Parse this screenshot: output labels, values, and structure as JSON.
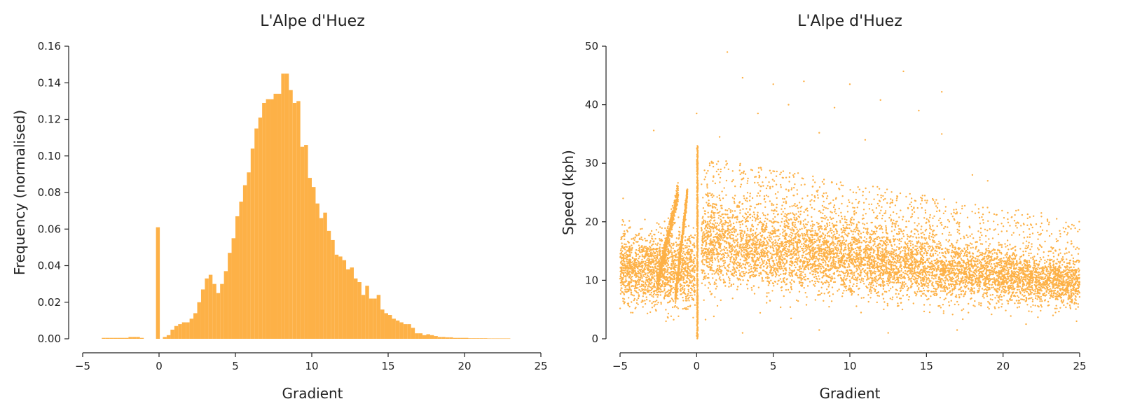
{
  "chart_data": [
    {
      "type": "bar",
      "title": "L'Alpe d'Huez",
      "xlabel": "Gradient",
      "ylabel": "Frequency (normalised)",
      "xlim": [
        -5,
        25
      ],
      "ylim": [
        0,
        0.16
      ],
      "xticks": [
        -5,
        0,
        5,
        10,
        15,
        20,
        25
      ],
      "yticks": [
        0.0,
        0.02,
        0.04,
        0.06,
        0.08,
        0.1,
        0.12,
        0.14,
        0.16
      ],
      "ytick_labels": [
        "0.00",
        "0.02",
        "0.04",
        "0.06",
        "0.08",
        "0.10",
        "0.12",
        "0.14",
        "0.16"
      ],
      "xtick_labels": [
        "−5",
        "0",
        "5",
        "10",
        "15",
        "20",
        "25"
      ],
      "color": "#fdb147",
      "bin_width": 0.25,
      "bins": [
        {
          "x": -3.75,
          "y": 0.0005
        },
        {
          "x": -3.5,
          "y": 0.0005
        },
        {
          "x": -3.25,
          "y": 0.0005
        },
        {
          "x": -3.0,
          "y": 0.0005
        },
        {
          "x": -2.75,
          "y": 0.0005
        },
        {
          "x": -2.5,
          "y": 0.0005
        },
        {
          "x": -2.25,
          "y": 0.0005
        },
        {
          "x": -2.0,
          "y": 0.001
        },
        {
          "x": -1.75,
          "y": 0.001
        },
        {
          "x": -1.5,
          "y": 0.001
        },
        {
          "x": -1.25,
          "y": 0.0005
        },
        {
          "x": -0.2,
          "y": 0.061
        },
        {
          "x": 0.25,
          "y": 0.001
        },
        {
          "x": 0.5,
          "y": 0.002
        },
        {
          "x": 0.75,
          "y": 0.005
        },
        {
          "x": 1.0,
          "y": 0.007
        },
        {
          "x": 1.25,
          "y": 0.008
        },
        {
          "x": 1.5,
          "y": 0.009
        },
        {
          "x": 1.75,
          "y": 0.009
        },
        {
          "x": 2.0,
          "y": 0.011
        },
        {
          "x": 2.25,
          "y": 0.014
        },
        {
          "x": 2.5,
          "y": 0.02
        },
        {
          "x": 2.75,
          "y": 0.027
        },
        {
          "x": 3.0,
          "y": 0.033
        },
        {
          "x": 3.25,
          "y": 0.035
        },
        {
          "x": 3.5,
          "y": 0.03
        },
        {
          "x": 3.75,
          "y": 0.025
        },
        {
          "x": 4.0,
          "y": 0.03
        },
        {
          "x": 4.25,
          "y": 0.037
        },
        {
          "x": 4.5,
          "y": 0.047
        },
        {
          "x": 4.75,
          "y": 0.055
        },
        {
          "x": 5.0,
          "y": 0.067
        },
        {
          "x": 5.25,
          "y": 0.075
        },
        {
          "x": 5.5,
          "y": 0.084
        },
        {
          "x": 5.75,
          "y": 0.091
        },
        {
          "x": 6.0,
          "y": 0.104
        },
        {
          "x": 6.25,
          "y": 0.115
        },
        {
          "x": 6.5,
          "y": 0.121
        },
        {
          "x": 6.75,
          "y": 0.129
        },
        {
          "x": 7.0,
          "y": 0.131
        },
        {
          "x": 7.25,
          "y": 0.131
        },
        {
          "x": 7.5,
          "y": 0.134
        },
        {
          "x": 7.75,
          "y": 0.134
        },
        {
          "x": 8.0,
          "y": 0.145
        },
        {
          "x": 8.25,
          "y": 0.145
        },
        {
          "x": 8.5,
          "y": 0.136
        },
        {
          "x": 8.75,
          "y": 0.129
        },
        {
          "x": 9.0,
          "y": 0.13
        },
        {
          "x": 9.25,
          "y": 0.105
        },
        {
          "x": 9.5,
          "y": 0.106
        },
        {
          "x": 9.75,
          "y": 0.088
        },
        {
          "x": 10.0,
          "y": 0.083
        },
        {
          "x": 10.25,
          "y": 0.074
        },
        {
          "x": 10.5,
          "y": 0.066
        },
        {
          "x": 10.75,
          "y": 0.069
        },
        {
          "x": 11.0,
          "y": 0.059
        },
        {
          "x": 11.25,
          "y": 0.054
        },
        {
          "x": 11.5,
          "y": 0.046
        },
        {
          "x": 11.75,
          "y": 0.045
        },
        {
          "x": 12.0,
          "y": 0.043
        },
        {
          "x": 12.25,
          "y": 0.038
        },
        {
          "x": 12.5,
          "y": 0.039
        },
        {
          "x": 12.75,
          "y": 0.033
        },
        {
          "x": 13.0,
          "y": 0.031
        },
        {
          "x": 13.25,
          "y": 0.024
        },
        {
          "x": 13.5,
          "y": 0.029
        },
        {
          "x": 13.75,
          "y": 0.022
        },
        {
          "x": 14.0,
          "y": 0.022
        },
        {
          "x": 14.25,
          "y": 0.024
        },
        {
          "x": 14.5,
          "y": 0.016
        },
        {
          "x": 14.75,
          "y": 0.014
        },
        {
          "x": 15.0,
          "y": 0.013
        },
        {
          "x": 15.25,
          "y": 0.011
        },
        {
          "x": 15.5,
          "y": 0.01
        },
        {
          "x": 15.75,
          "y": 0.009
        },
        {
          "x": 16.0,
          "y": 0.008
        },
        {
          "x": 16.25,
          "y": 0.008
        },
        {
          "x": 16.5,
          "y": 0.006
        },
        {
          "x": 16.75,
          "y": 0.003
        },
        {
          "x": 17.0,
          "y": 0.003
        },
        {
          "x": 17.25,
          "y": 0.002
        },
        {
          "x": 17.5,
          "y": 0.0025
        },
        {
          "x": 17.75,
          "y": 0.002
        },
        {
          "x": 18.0,
          "y": 0.0015
        },
        {
          "x": 18.25,
          "y": 0.001
        },
        {
          "x": 18.5,
          "y": 0.001
        },
        {
          "x": 18.75,
          "y": 0.0008
        },
        {
          "x": 19.0,
          "y": 0.0008
        },
        {
          "x": 19.25,
          "y": 0.0005
        },
        {
          "x": 19.5,
          "y": 0.0005
        },
        {
          "x": 19.75,
          "y": 0.0005
        },
        {
          "x": 20.0,
          "y": 0.0005
        },
        {
          "x": 20.25,
          "y": 0.0003
        },
        {
          "x": 20.5,
          "y": 0.0003
        },
        {
          "x": 20.75,
          "y": 0.0003
        },
        {
          "x": 21.0,
          "y": 0.0003
        },
        {
          "x": 21.25,
          "y": 0.0003
        },
        {
          "x": 21.5,
          "y": 0.0002
        },
        {
          "x": 21.75,
          "y": 0.0002
        },
        {
          "x": 22.0,
          "y": 0.0002
        },
        {
          "x": 22.25,
          "y": 0.0002
        },
        {
          "x": 22.5,
          "y": 0.0002
        },
        {
          "x": 22.75,
          "y": 0.0002
        }
      ]
    },
    {
      "type": "scatter",
      "title": "L'Alpe d'Huez",
      "xlabel": "Gradient",
      "ylabel": "Speed (kph)",
      "xlim": [
        -5,
        25
      ],
      "ylim": [
        0,
        50
      ],
      "xticks": [
        -5,
        0,
        5,
        10,
        15,
        20,
        25
      ],
      "yticks": [
        0,
        10,
        20,
        30,
        40,
        50
      ],
      "ytick_labels": [
        "0",
        "10",
        "20",
        "30",
        "40",
        "50"
      ],
      "xtick_labels": [
        "−5",
        "0",
        "5",
        "10",
        "15",
        "20",
        "25"
      ],
      "color": "#fdb147",
      "points": [
        {
          "x": 2.0,
          "y": 49.0
        },
        {
          "x": 13.5,
          "y": 45.7
        },
        {
          "x": 3.0,
          "y": 44.6
        },
        {
          "x": 7.0,
          "y": 44.0
        },
        {
          "x": 5.0,
          "y": 43.5
        },
        {
          "x": 10.0,
          "y": 43.5
        },
        {
          "x": 16.0,
          "y": 42.2
        },
        {
          "x": 12.0,
          "y": 40.8
        },
        {
          "x": 6.0,
          "y": 40.0
        },
        {
          "x": 9.0,
          "y": 39.5
        },
        {
          "x": 14.5,
          "y": 39.0
        },
        {
          "x": 4.0,
          "y": 38.5
        },
        {
          "x": 0.0,
          "y": 38.5
        },
        {
          "x": -2.8,
          "y": 35.6
        },
        {
          "x": 16.0,
          "y": 35.0
        },
        {
          "x": 8.0,
          "y": 35.2
        },
        {
          "x": 11.0,
          "y": 34.0
        },
        {
          "x": 1.5,
          "y": 34.5
        },
        {
          "x": 18.0,
          "y": 28.0
        },
        {
          "x": 19.0,
          "y": 27.0
        },
        {
          "x": 21.0,
          "y": 22.0
        },
        {
          "x": 22.5,
          "y": 21.5
        },
        {
          "x": 23.5,
          "y": 20.5
        },
        {
          "x": 24.5,
          "y": 19.5
        },
        {
          "x": -4.8,
          "y": 24.0
        },
        {
          "x": -4.5,
          "y": 6.0
        },
        {
          "x": -2.0,
          "y": 3.0
        },
        {
          "x": 0.0,
          "y": 0.5
        },
        {
          "x": 3.0,
          "y": 1.0
        },
        {
          "x": 8.0,
          "y": 1.5
        },
        {
          "x": 12.5,
          "y": 1.0
        },
        {
          "x": 17.0,
          "y": 1.5
        },
        {
          "x": 21.5,
          "y": 2.5
        },
        {
          "x": 24.8,
          "y": 3.0
        }
      ],
      "dense_regions": [
        {
          "x_range": [
            0.3,
            25
          ],
          "y_range": [
            5,
            22
          ],
          "shape": "main cluster"
        },
        {
          "x_range": [
            -5,
            0
          ],
          "y_range": [
            6,
            18
          ],
          "shape": "left cluster"
        },
        {
          "x_range": [
            0,
            0.15
          ],
          "y_range": [
            0,
            33
          ],
          "shape": "vertical streak at zero"
        }
      ]
    }
  ]
}
